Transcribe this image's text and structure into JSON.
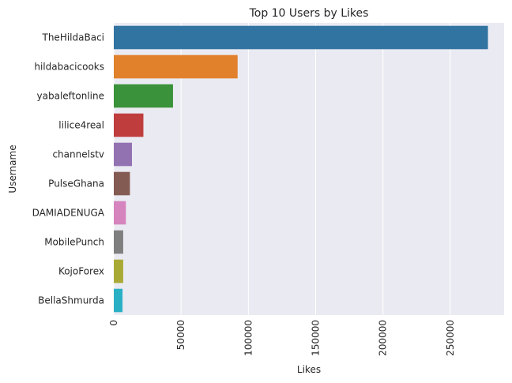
{
  "chart_data": {
    "type": "bar",
    "orientation": "horizontal",
    "title": "Top 10 Users by Likes",
    "xlabel": "Likes",
    "ylabel": "Username",
    "xlim": [
      0,
      290000
    ],
    "xticks": [
      0,
      50000,
      100000,
      150000,
      200000,
      250000
    ],
    "grid": true,
    "categories": [
      "TheHildaBaci",
      "hildabacicooks",
      "yabaleftonline",
      "lilice4real",
      "channelstv",
      "PulseGhana",
      "DAMIADENUGA",
      "MobilePunch",
      "KojoForex",
      "BellaShmurda"
    ],
    "values": [
      278000,
      92000,
      44000,
      22000,
      13500,
      12000,
      9000,
      7000,
      7000,
      6500
    ],
    "colors": [
      "#3274a1",
      "#e1812c",
      "#3a923a",
      "#c03d3e",
      "#9372b2",
      "#845b53",
      "#d684bd",
      "#7f7f7f",
      "#a9aa35",
      "#2ab0c5"
    ],
    "plot_background": "#eaeaf2",
    "grid_color": "#ffffff"
  }
}
